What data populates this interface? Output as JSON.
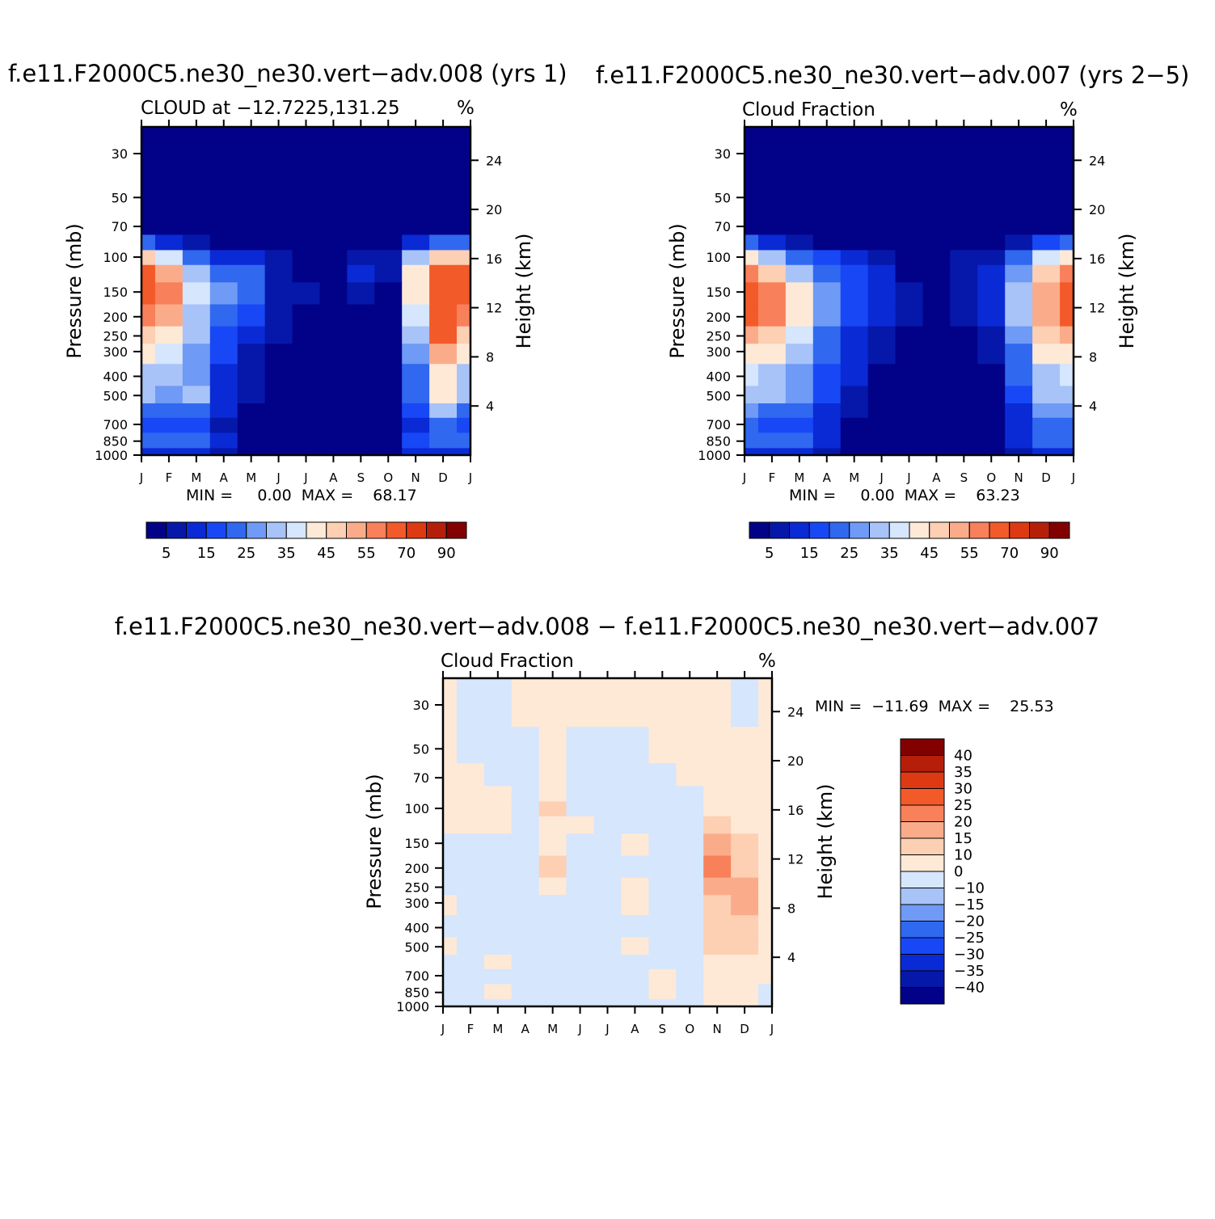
{
  "palette": {
    "abs": [
      "#020288",
      "#0618aa",
      "#0a2ad6",
      "#1848f5",
      "#3068f0",
      "#6f9af5",
      "#a8c3f8",
      "#d5e6fd",
      "#fee9d7",
      "#fdcfb3",
      "#faac8a",
      "#f8805a",
      "#f35a2a",
      "#dd3a13",
      "#b51f0a",
      "#830000"
    ],
    "diff": [
      "#020288",
      "#0618aa",
      "#0a2ad6",
      "#1848f5",
      "#3068f0",
      "#6f9af5",
      "#a8c3f8",
      "#d5e6fd",
      "#fee9d7",
      "#fdcfb3",
      "#faac8a",
      "#f8805a",
      "#f35a2a",
      "#dd3a13",
      "#b51f0a",
      "#830000"
    ]
  },
  "panels": [
    {
      "id": "panel1",
      "title": "f.e11.F2000C5.ne30_ne30.vert−adv.008 (yrs 1)",
      "left_title": "CLOUD at −12.7225,131.25",
      "units": "%",
      "ylabel": "Pressure (mb)",
      "ylabel_right": "Height (km)",
      "minmax": "MIN =     0.00  MAX =    68.17",
      "colorbar_labels": [
        "5",
        "15",
        "25",
        "35",
        "45",
        "55",
        "70",
        "90"
      ]
    },
    {
      "id": "panel2",
      "title": "f.e11.F2000C5.ne30_ne30.vert−adv.007 (yrs 2−5)",
      "left_title": "Cloud Fraction",
      "units": "%",
      "ylabel": "Pressure (mb)",
      "ylabel_right": "Height (km)",
      "minmax": "MIN =     0.00  MAX =    63.23",
      "colorbar_labels": [
        "5",
        "15",
        "25",
        "35",
        "45",
        "55",
        "70",
        "90"
      ]
    },
    {
      "id": "panel3",
      "title": "f.e11.F2000C5.ne30_ne30.vert−adv.008 − f.e11.F2000C5.ne30_ne30.vert−adv.007",
      "left_title": "Cloud Fraction",
      "units": "%",
      "ylabel": "Pressure (mb)",
      "ylabel_right": "Height (km)",
      "minmax": "MIN =  −11.69  MAX =    25.53",
      "colorbar_labels": [
        "40",
        "35",
        "30",
        "25",
        "20",
        "15",
        "10",
        "0",
        "−10",
        "−15",
        "−20",
        "−25",
        "−30",
        "−35",
        "−40"
      ]
    }
  ],
  "chart_data": [
    {
      "type": "heatmap",
      "title": "CLOUD at −12.7225,131.25",
      "units": "%",
      "xlabel": "",
      "ylabel": "Pressure (mb)",
      "ylabel_right": "Height (km)",
      "x_ticks": [
        "J",
        "F",
        "M",
        "A",
        "M",
        "J",
        "J",
        "A",
        "S",
        "O",
        "N",
        "D",
        "J"
      ],
      "y_ticks": [
        30,
        50,
        70,
        100,
        150,
        200,
        250,
        300,
        400,
        500,
        700,
        850,
        1000
      ],
      "y_scale": "log",
      "y_range": [
        1000,
        22
      ],
      "right_ticks": [
        4,
        8,
        12,
        16,
        20,
        24
      ],
      "min": 0.0,
      "max": 68.17,
      "levels": [
        5,
        10,
        15,
        20,
        25,
        30,
        35,
        40,
        45,
        50,
        55,
        60,
        70,
        80,
        90
      ],
      "colorbar_labels": [
        "5",
        "15",
        "25",
        "35",
        "45",
        "55",
        "70",
        "90"
      ],
      "pressure_levels": [
        22,
        30,
        50,
        70,
        85,
        100,
        120,
        150,
        200,
        250,
        300,
        400,
        500,
        600,
        700,
        850,
        1000
      ],
      "values": [
        [
          0,
          0,
          0,
          0,
          0,
          0,
          0,
          0,
          0,
          0,
          0,
          0,
          0
        ],
        [
          0,
          0,
          0,
          0,
          0,
          0,
          0,
          0,
          0,
          0,
          0,
          0,
          0
        ],
        [
          0,
          0,
          0,
          0,
          0,
          0,
          0,
          0,
          0,
          0,
          0,
          0,
          0
        ],
        [
          4,
          2,
          1,
          1,
          1,
          0,
          0,
          0,
          0,
          0,
          1,
          2,
          4
        ],
        [
          22,
          12,
          5,
          4,
          4,
          2,
          1,
          1,
          2,
          3,
          10,
          20,
          22
        ],
        [
          48,
          35,
          20,
          14,
          12,
          6,
          3,
          3,
          8,
          8,
          30,
          45,
          48
        ],
        [
          60,
          52,
          30,
          22,
          20,
          8,
          4,
          4,
          12,
          6,
          40,
          60,
          60
        ],
        [
          65,
          58,
          35,
          25,
          22,
          8,
          5,
          4,
          6,
          4,
          42,
          66,
          65
        ],
        [
          58,
          52,
          34,
          24,
          18,
          8,
          4,
          2,
          2,
          2,
          38,
          68,
          58
        ],
        [
          45,
          42,
          30,
          18,
          12,
          6,
          2,
          1,
          1,
          1,
          32,
          60,
          45
        ],
        [
          40,
          36,
          28,
          15,
          8,
          4,
          1,
          0,
          0,
          0,
          28,
          52,
          40
        ],
        [
          34,
          30,
          26,
          12,
          6,
          3,
          1,
          0,
          0,
          0,
          24,
          44,
          34
        ],
        [
          30,
          26,
          30,
          12,
          5,
          2,
          1,
          0,
          0,
          0,
          20,
          40,
          30
        ],
        [
          24,
          22,
          24,
          10,
          4,
          1,
          0,
          0,
          0,
          0,
          16,
          32,
          24
        ],
        [
          18,
          16,
          16,
          8,
          3,
          1,
          0,
          0,
          0,
          3,
          14,
          22,
          18
        ],
        [
          22,
          20,
          20,
          10,
          3,
          1,
          0,
          0,
          0,
          1,
          16,
          22,
          22
        ],
        [
          14,
          12,
          12,
          6,
          2,
          0,
          0,
          0,
          0,
          0,
          10,
          14,
          14
        ]
      ]
    },
    {
      "type": "heatmap",
      "title": "Cloud Fraction",
      "units": "%",
      "xlabel": "",
      "ylabel": "Pressure (mb)",
      "ylabel_right": "Height (km)",
      "x_ticks": [
        "J",
        "F",
        "M",
        "A",
        "M",
        "J",
        "J",
        "A",
        "S",
        "O",
        "N",
        "D",
        "J"
      ],
      "y_ticks": [
        30,
        50,
        70,
        100,
        150,
        200,
        250,
        300,
        400,
        500,
        700,
        850,
        1000
      ],
      "y_scale": "log",
      "y_range": [
        1000,
        22
      ],
      "right_ticks": [
        4,
        8,
        12,
        16,
        20,
        24
      ],
      "min": 0.0,
      "max": 63.23,
      "levels": [
        5,
        10,
        15,
        20,
        25,
        30,
        35,
        40,
        45,
        50,
        55,
        60,
        70,
        80,
        90
      ],
      "colorbar_labels": [
        "5",
        "15",
        "25",
        "35",
        "45",
        "55",
        "70",
        "90"
      ],
      "pressure_levels": [
        22,
        30,
        50,
        70,
        85,
        100,
        120,
        150,
        200,
        250,
        300,
        400,
        500,
        600,
        700,
        850,
        1000
      ],
      "values": [
        [
          0,
          0,
          0,
          0,
          0,
          0,
          0,
          0,
          0,
          0,
          0,
          0,
          0
        ],
        [
          0,
          0,
          0,
          0,
          0,
          0,
          0,
          0,
          0,
          0,
          0,
          0,
          0
        ],
        [
          0,
          0,
          0,
          0,
          0,
          0,
          0,
          0,
          0,
          0,
          0,
          0,
          0
        ],
        [
          4,
          2,
          1,
          1,
          1,
          0,
          0,
          0,
          0,
          0,
          1,
          2,
          4
        ],
        [
          20,
          12,
          6,
          4,
          3,
          2,
          1,
          1,
          1,
          2,
          8,
          16,
          20
        ],
        [
          44,
          34,
          22,
          15,
          10,
          6,
          3,
          3,
          5,
          8,
          22,
          38,
          44
        ],
        [
          55,
          48,
          34,
          22,
          16,
          10,
          4,
          4,
          8,
          10,
          28,
          48,
          55
        ],
        [
          62,
          56,
          40,
          26,
          18,
          10,
          5,
          4,
          8,
          10,
          30,
          54,
          62
        ],
        [
          63,
          55,
          40,
          26,
          18,
          10,
          5,
          4,
          6,
          10,
          30,
          52,
          63
        ],
        [
          52,
          46,
          36,
          24,
          14,
          8,
          4,
          2,
          3,
          8,
          28,
          46,
          52
        ],
        [
          44,
          40,
          32,
          20,
          12,
          6,
          2,
          1,
          2,
          6,
          24,
          40,
          44
        ],
        [
          36,
          34,
          28,
          18,
          10,
          4,
          1,
          0,
          1,
          4,
          20,
          34,
          36
        ],
        [
          32,
          30,
          26,
          16,
          8,
          3,
          1,
          0,
          0,
          3,
          18,
          30,
          32
        ],
        [
          26,
          24,
          22,
          14,
          6,
          2,
          0,
          0,
          0,
          2,
          14,
          26,
          26
        ],
        [
          20,
          18,
          18,
          10,
          4,
          1,
          0,
          0,
          0,
          1,
          12,
          20,
          20
        ],
        [
          22,
          20,
          20,
          10,
          4,
          1,
          0,
          0,
          0,
          1,
          12,
          20,
          22
        ],
        [
          14,
          12,
          12,
          6,
          2,
          0,
          0,
          0,
          0,
          0,
          8,
          14,
          14
        ]
      ]
    },
    {
      "type": "heatmap",
      "title": "Cloud Fraction",
      "units": "%",
      "xlabel": "",
      "ylabel": "Pressure (mb)",
      "ylabel_right": "Height (km)",
      "x_ticks": [
        "J",
        "F",
        "M",
        "A",
        "M",
        "J",
        "J",
        "A",
        "S",
        "O",
        "N",
        "D",
        "J"
      ],
      "y_ticks": [
        30,
        50,
        70,
        100,
        150,
        200,
        250,
        300,
        400,
        500,
        700,
        850,
        1000
      ],
      "y_scale": "log",
      "y_range": [
        1000,
        22
      ],
      "right_ticks": [
        4,
        8,
        12,
        16,
        20,
        24
      ],
      "min": -11.69,
      "max": 25.53,
      "levels": [
        -40,
        -35,
        -30,
        -25,
        -20,
        -15,
        -10,
        0,
        10,
        15,
        20,
        25,
        30,
        35,
        40
      ],
      "colorbar_labels": [
        "40",
        "35",
        "30",
        "25",
        "20",
        "15",
        "10",
        "0",
        "−10",
        "−15",
        "−20",
        "−25",
        "−30",
        "−35",
        "−40"
      ],
      "pressure_levels": [
        22,
        30,
        50,
        70,
        85,
        100,
        120,
        150,
        200,
        250,
        300,
        400,
        500,
        600,
        700,
        850,
        1000
      ],
      "values": [
        [
          2,
          -2,
          -2,
          2,
          2,
          2,
          2,
          2,
          2,
          2,
          2,
          -2,
          2
        ],
        [
          2,
          -2,
          -2,
          2,
          2,
          2,
          2,
          2,
          2,
          2,
          2,
          -2,
          2
        ],
        [
          2,
          -2,
          -2,
          -2,
          2,
          -2,
          -2,
          -2,
          2,
          2,
          2,
          2,
          2
        ],
        [
          2,
          2,
          -2,
          -2,
          2,
          -2,
          -2,
          -2,
          -2,
          2,
          2,
          2,
          2
        ],
        [
          2,
          2,
          2,
          -2,
          3,
          -2,
          -2,
          -2,
          -2,
          -2,
          8,
          4,
          2
        ],
        [
          2,
          2,
          3,
          -2,
          11,
          -2,
          -2,
          -2,
          -2,
          -2,
          9,
          6,
          2
        ],
        [
          2,
          2,
          2,
          -2,
          4,
          2,
          -2,
          -2,
          -2,
          -2,
          12,
          9,
          2
        ],
        [
          -2,
          -2,
          -2,
          -2,
          6,
          -2,
          -2,
          2,
          -2,
          -2,
          16,
          11,
          2
        ],
        [
          -2,
          -2,
          -2,
          -2,
          11,
          -2,
          -2,
          -2,
          -2,
          -2,
          22,
          14,
          2
        ],
        [
          -2,
          -2,
          -2,
          -2,
          2,
          -2,
          -2,
          2,
          -2,
          -2,
          18,
          16,
          4
        ],
        [
          2,
          -2,
          -2,
          -2,
          -2,
          -2,
          -2,
          2,
          -2,
          -2,
          12,
          16,
          6
        ],
        [
          -2,
          -2,
          -2,
          -2,
          -2,
          -2,
          -2,
          -2,
          -2,
          -2,
          10,
          12,
          6
        ],
        [
          2,
          -2,
          -2,
          -2,
          -2,
          -2,
          -2,
          2,
          -2,
          -2,
          10,
          14,
          4
        ],
        [
          -2,
          -2,
          3,
          -2,
          -2,
          -2,
          -2,
          -2,
          -2,
          -2,
          6,
          8,
          2
        ],
        [
          -2,
          -2,
          -2,
          -2,
          -2,
          -2,
          -2,
          -2,
          2,
          -2,
          4,
          2,
          2
        ],
        [
          -2,
          -2,
          2,
          -2,
          -2,
          -2,
          -2,
          -2,
          2,
          -2,
          2,
          2,
          -2
        ],
        [
          -2,
          -2,
          -2,
          -2,
          -2,
          -2,
          -2,
          -2,
          -2,
          -2,
          2,
          2,
          -2
        ]
      ]
    }
  ]
}
